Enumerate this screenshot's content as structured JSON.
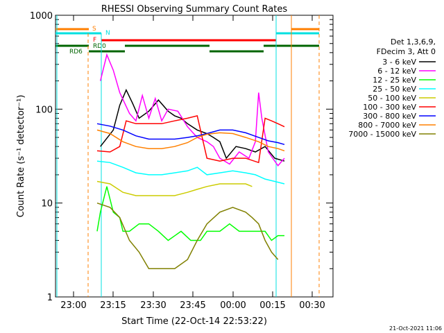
{
  "chart_data": {
    "type": "line",
    "title": "RHESSI Observing Summary Count Rates",
    "xlabel": "Start Time (22-Oct-14 22:53:22)",
    "ylabel": "Count Rate (s⁻¹ detector⁻¹)",
    "y_scale": "log",
    "ylim": [
      1,
      1000
    ],
    "x_ticks": [
      "23:00",
      "23:15",
      "23:30",
      "23:45",
      "00:00",
      "00:15",
      "00:30"
    ],
    "y_ticks": [
      "1",
      "10",
      "100",
      "1000"
    ],
    "legend_header": [
      "Det 1,3,6,9,",
      "FDecim 3, Att 0"
    ],
    "footer_date": "21-Oct-2021 11:06",
    "flags": {
      "S": {
        "label": "S",
        "color": "#ff7f00"
      },
      "N": {
        "label": "N",
        "color": "#00e0e0"
      },
      "F": {
        "label": "F",
        "color": "#ff0000"
      },
      "RD0": {
        "label": "RD0",
        "color": "#006400"
      },
      "RD6": {
        "label": "RD6",
        "color": "#006400"
      }
    },
    "series": [
      {
        "name": "3 - 6 keV",
        "color": "#000000",
        "points": [
          [
            15,
            40
          ],
          [
            19,
            60
          ],
          [
            21,
            110
          ],
          [
            23,
            160
          ],
          [
            25,
            115
          ],
          [
            27,
            80
          ],
          [
            30,
            95
          ],
          [
            33,
            125
          ],
          [
            36,
            95
          ],
          [
            38,
            85
          ],
          [
            40,
            80
          ],
          [
            42,
            70
          ],
          [
            45,
            60
          ],
          [
            48,
            55
          ],
          [
            50,
            50
          ],
          [
            52,
            45
          ],
          [
            54,
            30
          ],
          [
            57,
            40
          ],
          [
            60,
            38
          ],
          [
            63,
            35
          ],
          [
            66,
            40
          ],
          [
            69,
            30
          ],
          [
            72,
            28
          ]
        ]
      },
      {
        "name": "6 - 12 keV",
        "color": "#ff00ff",
        "points": [
          [
            15,
            200
          ],
          [
            17,
            380
          ],
          [
            19,
            260
          ],
          [
            21,
            150
          ],
          [
            24,
            90
          ],
          [
            26,
            75
          ],
          [
            28,
            140
          ],
          [
            30,
            80
          ],
          [
            32,
            130
          ],
          [
            34,
            75
          ],
          [
            36,
            100
          ],
          [
            39,
            95
          ],
          [
            42,
            65
          ],
          [
            45,
            50
          ],
          [
            48,
            45
          ],
          [
            50,
            40
          ],
          [
            52,
            30
          ],
          [
            55,
            26
          ],
          [
            58,
            35
          ],
          [
            61,
            30
          ],
          [
            63,
            45
          ],
          [
            64,
            150
          ],
          [
            65,
            80
          ],
          [
            67,
            35
          ],
          [
            70,
            25
          ],
          [
            72,
            30
          ]
        ]
      },
      {
        "name": "12 - 25 keV",
        "color": "#00ff00",
        "points": [
          [
            14,
            5
          ],
          [
            15,
            8
          ],
          [
            17,
            15
          ],
          [
            19,
            8
          ],
          [
            21,
            7
          ],
          [
            22,
            5
          ],
          [
            24,
            5
          ],
          [
            27,
            6
          ],
          [
            30,
            6
          ],
          [
            33,
            5
          ],
          [
            36,
            4
          ],
          [
            40,
            5
          ],
          [
            43,
            4
          ],
          [
            46,
            4
          ],
          [
            48,
            5
          ],
          [
            52,
            5
          ],
          [
            55,
            6
          ],
          [
            58,
            5
          ],
          [
            61,
            5
          ],
          [
            64,
            5
          ],
          [
            66,
            5
          ],
          [
            68,
            4
          ],
          [
            70,
            4.5
          ],
          [
            72,
            4.5
          ]
        ]
      },
      {
        "name": "25 - 50 keV",
        "color": "#00ffff",
        "points": [
          [
            14,
            28
          ],
          [
            18,
            27
          ],
          [
            22,
            24
          ],
          [
            26,
            21
          ],
          [
            30,
            20
          ],
          [
            34,
            20
          ],
          [
            38,
            21
          ],
          [
            42,
            22
          ],
          [
            45,
            24
          ],
          [
            48,
            20
          ],
          [
            52,
            21
          ],
          [
            56,
            22
          ],
          [
            60,
            21
          ],
          [
            63,
            20
          ],
          [
            66,
            18
          ],
          [
            69,
            17
          ],
          [
            72,
            16
          ]
        ]
      },
      {
        "name": "50 - 100 keV",
        "color": "#cccc00",
        "points": [
          [
            14,
            17
          ],
          [
            18,
            16
          ],
          [
            22,
            13
          ],
          [
            26,
            12
          ],
          [
            30,
            12
          ],
          [
            34,
            12
          ],
          [
            38,
            12
          ],
          [
            42,
            13
          ],
          [
            45,
            14
          ],
          [
            48,
            15
          ],
          [
            52,
            16
          ],
          [
            56,
            16
          ],
          [
            60,
            16
          ],
          [
            62,
            15
          ]
        ]
      },
      {
        "name": "100 - 300 keV",
        "color": "#ff0000",
        "points": [
          [
            14,
            36
          ],
          [
            18,
            35
          ],
          [
            21,
            40
          ],
          [
            23,
            75
          ],
          [
            26,
            70
          ],
          [
            30,
            70
          ],
          [
            34,
            70
          ],
          [
            38,
            75
          ],
          [
            42,
            80
          ],
          [
            45,
            85
          ],
          [
            48,
            30
          ],
          [
            52,
            28
          ],
          [
            56,
            30
          ],
          [
            60,
            30
          ],
          [
            64,
            27
          ],
          [
            66,
            80
          ],
          [
            68,
            75
          ],
          [
            70,
            70
          ],
          [
            72,
            65
          ]
        ]
      },
      {
        "name": "300 - 800 keV",
        "color": "#0000ff",
        "points": [
          [
            14,
            70
          ],
          [
            18,
            66
          ],
          [
            22,
            60
          ],
          [
            26,
            52
          ],
          [
            30,
            48
          ],
          [
            34,
            48
          ],
          [
            38,
            48
          ],
          [
            42,
            50
          ],
          [
            45,
            52
          ],
          [
            48,
            55
          ],
          [
            52,
            60
          ],
          [
            56,
            60
          ],
          [
            60,
            56
          ],
          [
            64,
            50
          ],
          [
            67,
            46
          ],
          [
            70,
            44
          ],
          [
            72,
            42
          ]
        ]
      },
      {
        "name": "800 - 7000 keV",
        "color": "#ff8000",
        "points": [
          [
            14,
            60
          ],
          [
            18,
            55
          ],
          [
            22,
            45
          ],
          [
            26,
            40
          ],
          [
            30,
            38
          ],
          [
            34,
            38
          ],
          [
            38,
            40
          ],
          [
            42,
            44
          ],
          [
            45,
            50
          ],
          [
            48,
            54
          ],
          [
            52,
            56
          ],
          [
            56,
            55
          ],
          [
            60,
            50
          ],
          [
            64,
            45
          ],
          [
            67,
            40
          ],
          [
            70,
            38
          ],
          [
            72,
            36
          ]
        ]
      },
      {
        "name": "7000 - 15000 keV",
        "color": "#808000",
        "points": [
          [
            14,
            10
          ],
          [
            18,
            9
          ],
          [
            21,
            7
          ],
          [
            24,
            4
          ],
          [
            27,
            3
          ],
          [
            30,
            2
          ],
          [
            34,
            2
          ],
          [
            38,
            2
          ],
          [
            42,
            2.5
          ],
          [
            45,
            4
          ],
          [
            48,
            6
          ],
          [
            52,
            8
          ],
          [
            56,
            9
          ],
          [
            60,
            8
          ],
          [
            62,
            7
          ],
          [
            64,
            6
          ],
          [
            66,
            4
          ],
          [
            68,
            3
          ],
          [
            70,
            2.5
          ]
        ]
      }
    ]
  }
}
